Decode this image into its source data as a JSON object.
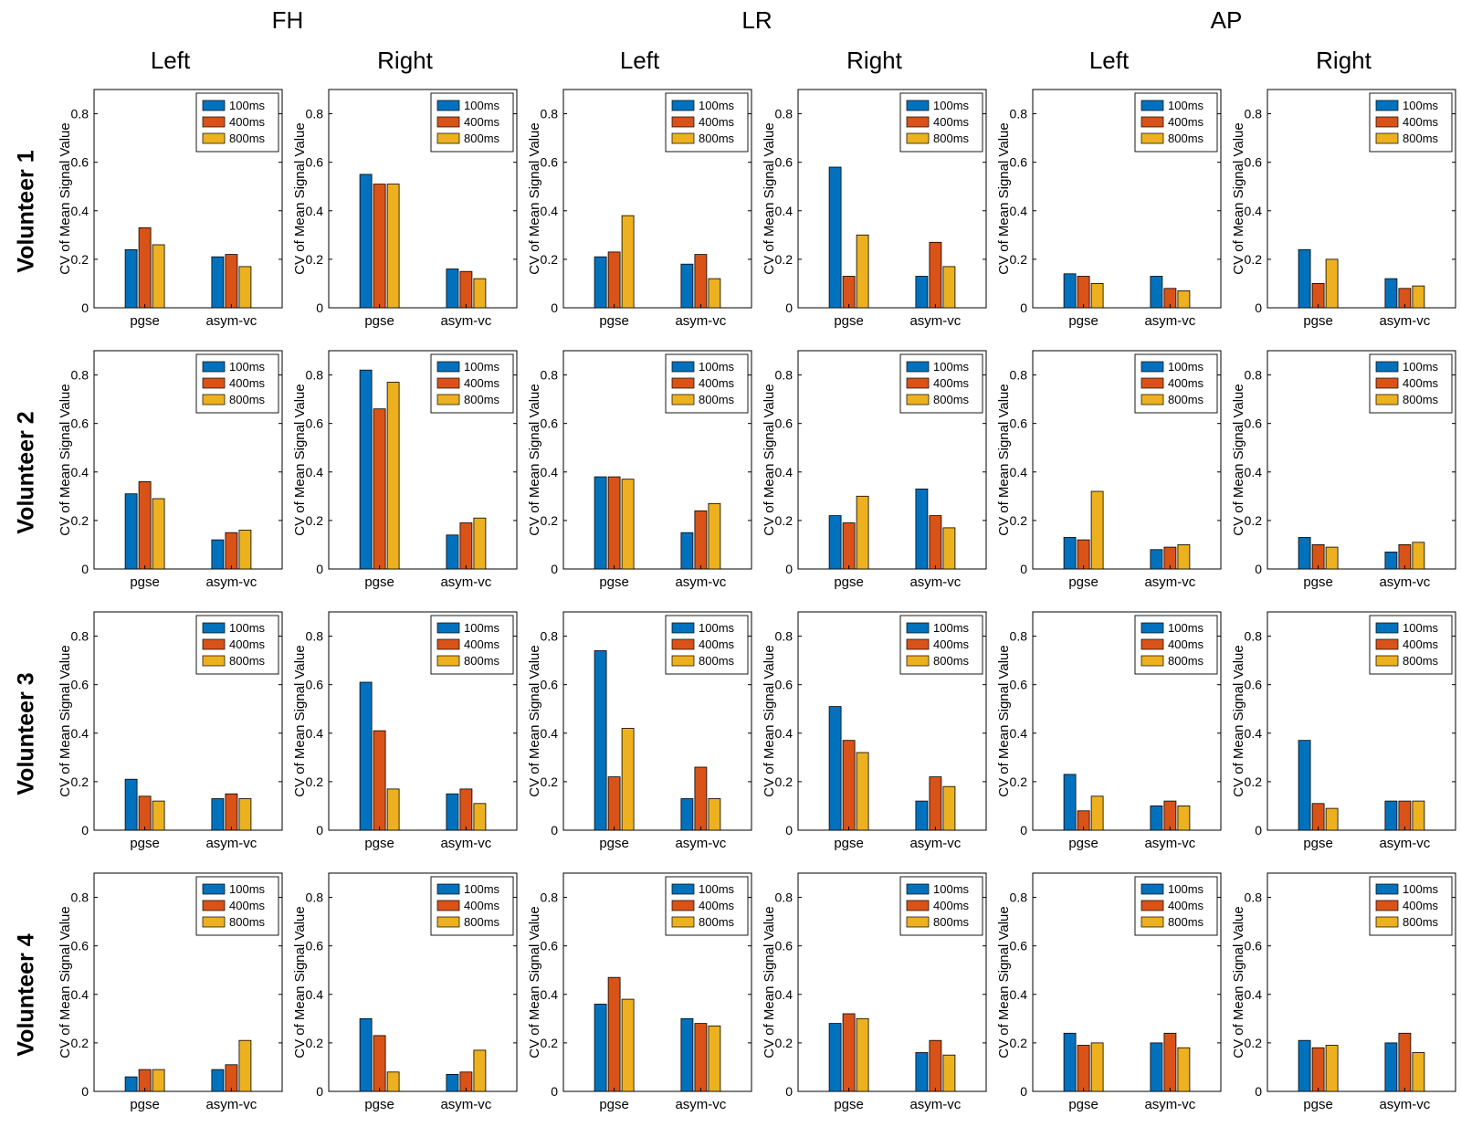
{
  "chart_data": {
    "type": "bar",
    "title": "",
    "ylabel": "CV of Mean Signal Value",
    "xlabel": "",
    "ylim": [
      0,
      0.9
    ],
    "yticks": [
      0,
      0.2,
      0.4,
      0.6,
      0.8
    ],
    "categories": [
      "pgse",
      "asym-vc"
    ],
    "series": [
      "100ms",
      "400ms",
      "800ms"
    ],
    "series_colors": [
      "#0072BD",
      "#D95319",
      "#EDB120"
    ],
    "legend_position": "top-right-inside",
    "grid": false,
    "column_groups": [
      "FH",
      "LR",
      "AP"
    ],
    "column_sides": [
      "Left",
      "Right"
    ],
    "row_labels": [
      "Volunteer 1",
      "Volunteer 2",
      "Volunteer 3",
      "Volunteer 4"
    ],
    "subplots": [
      {
        "volunteer": "Volunteer 1",
        "orientation": "FH",
        "side": "Left",
        "pgse": [
          0.24,
          0.33,
          0.26
        ],
        "asym_vc": [
          0.21,
          0.22,
          0.17
        ]
      },
      {
        "volunteer": "Volunteer 1",
        "orientation": "FH",
        "side": "Right",
        "pgse": [
          0.55,
          0.51,
          0.51
        ],
        "asym_vc": [
          0.16,
          0.15,
          0.12
        ]
      },
      {
        "volunteer": "Volunteer 1",
        "orientation": "LR",
        "side": "Left",
        "pgse": [
          0.21,
          0.23,
          0.38
        ],
        "asym_vc": [
          0.18,
          0.22,
          0.12
        ]
      },
      {
        "volunteer": "Volunteer 1",
        "orientation": "LR",
        "side": "Right",
        "pgse": [
          0.58,
          0.13,
          0.3
        ],
        "asym_vc": [
          0.13,
          0.27,
          0.17
        ]
      },
      {
        "volunteer": "Volunteer 1",
        "orientation": "AP",
        "side": "Left",
        "pgse": [
          0.14,
          0.13,
          0.1
        ],
        "asym_vc": [
          0.13,
          0.08,
          0.07
        ]
      },
      {
        "volunteer": "Volunteer 1",
        "orientation": "AP",
        "side": "Right",
        "pgse": [
          0.24,
          0.1,
          0.2
        ],
        "asym_vc": [
          0.12,
          0.08,
          0.09
        ]
      },
      {
        "volunteer": "Volunteer 2",
        "orientation": "FH",
        "side": "Left",
        "pgse": [
          0.31,
          0.36,
          0.29
        ],
        "asym_vc": [
          0.12,
          0.15,
          0.16
        ]
      },
      {
        "volunteer": "Volunteer 2",
        "orientation": "FH",
        "side": "Right",
        "pgse": [
          0.82,
          0.66,
          0.77
        ],
        "asym_vc": [
          0.14,
          0.19,
          0.21
        ]
      },
      {
        "volunteer": "Volunteer 2",
        "orientation": "LR",
        "side": "Left",
        "pgse": [
          0.38,
          0.38,
          0.37
        ],
        "asym_vc": [
          0.15,
          0.24,
          0.27
        ]
      },
      {
        "volunteer": "Volunteer 2",
        "orientation": "LR",
        "side": "Right",
        "pgse": [
          0.22,
          0.19,
          0.3
        ],
        "asym_vc": [
          0.33,
          0.22,
          0.17
        ]
      },
      {
        "volunteer": "Volunteer 2",
        "orientation": "AP",
        "side": "Left",
        "pgse": [
          0.13,
          0.12,
          0.32
        ],
        "asym_vc": [
          0.08,
          0.09,
          0.1
        ]
      },
      {
        "volunteer": "Volunteer 2",
        "orientation": "AP",
        "side": "Right",
        "pgse": [
          0.13,
          0.1,
          0.09
        ],
        "asym_vc": [
          0.07,
          0.1,
          0.11
        ]
      },
      {
        "volunteer": "Volunteer 3",
        "orientation": "FH",
        "side": "Left",
        "pgse": [
          0.21,
          0.14,
          0.12
        ],
        "asym_vc": [
          0.13,
          0.15,
          0.13
        ]
      },
      {
        "volunteer": "Volunteer 3",
        "orientation": "FH",
        "side": "Right",
        "pgse": [
          0.61,
          0.41,
          0.17
        ],
        "asym_vc": [
          0.15,
          0.17,
          0.11
        ]
      },
      {
        "volunteer": "Volunteer 3",
        "orientation": "LR",
        "side": "Left",
        "pgse": [
          0.74,
          0.22,
          0.42
        ],
        "asym_vc": [
          0.13,
          0.26,
          0.13
        ]
      },
      {
        "volunteer": "Volunteer 3",
        "orientation": "LR",
        "side": "Right",
        "pgse": [
          0.51,
          0.37,
          0.32
        ],
        "asym_vc": [
          0.12,
          0.22,
          0.18
        ]
      },
      {
        "volunteer": "Volunteer 3",
        "orientation": "AP",
        "side": "Left",
        "pgse": [
          0.23,
          0.08,
          0.14
        ],
        "asym_vc": [
          0.1,
          0.12,
          0.1
        ]
      },
      {
        "volunteer": "Volunteer 3",
        "orientation": "AP",
        "side": "Right",
        "pgse": [
          0.37,
          0.11,
          0.09
        ],
        "asym_vc": [
          0.12,
          0.12,
          0.12
        ]
      },
      {
        "volunteer": "Volunteer 4",
        "orientation": "FH",
        "side": "Left",
        "pgse": [
          0.06,
          0.09,
          0.09
        ],
        "asym_vc": [
          0.09,
          0.11,
          0.21
        ]
      },
      {
        "volunteer": "Volunteer 4",
        "orientation": "FH",
        "side": "Right",
        "pgse": [
          0.3,
          0.23,
          0.08
        ],
        "asym_vc": [
          0.07,
          0.08,
          0.17
        ]
      },
      {
        "volunteer": "Volunteer 4",
        "orientation": "LR",
        "side": "Left",
        "pgse": [
          0.36,
          0.47,
          0.38
        ],
        "asym_vc": [
          0.3,
          0.28,
          0.27
        ]
      },
      {
        "volunteer": "Volunteer 4",
        "orientation": "LR",
        "side": "Right",
        "pgse": [
          0.28,
          0.32,
          0.3
        ],
        "asym_vc": [
          0.16,
          0.21,
          0.15
        ]
      },
      {
        "volunteer": "Volunteer 4",
        "orientation": "AP",
        "side": "Left",
        "pgse": [
          0.24,
          0.19,
          0.2
        ],
        "asym_vc": [
          0.2,
          0.24,
          0.18
        ]
      },
      {
        "volunteer": "Volunteer 4",
        "orientation": "AP",
        "side": "Right",
        "pgse": [
          0.21,
          0.18,
          0.19
        ],
        "asym_vc": [
          0.2,
          0.24,
          0.16
        ]
      }
    ]
  }
}
